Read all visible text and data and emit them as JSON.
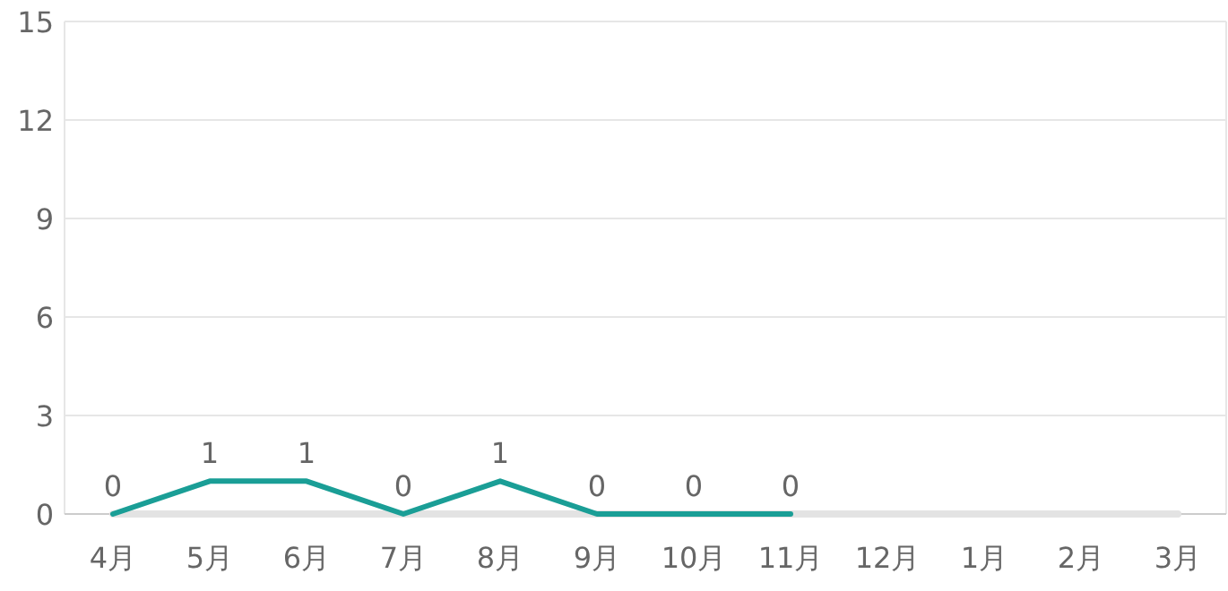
{
  "chart_data": {
    "type": "line",
    "categories": [
      "4月",
      "5月",
      "6月",
      "7月",
      "8月",
      "9月",
      "10月",
      "11月",
      "12月",
      "1月",
      "2月",
      "3月"
    ],
    "series": [
      {
        "color": "#e3e3e3",
        "values": [
          0,
          0,
          0,
          0,
          0,
          0,
          0,
          0,
          0,
          0,
          0,
          0
        ]
      },
      {
        "color": "#1a9e96",
        "values": [
          0,
          1,
          1,
          0,
          1,
          0,
          0,
          0,
          null,
          null,
          null,
          null
        ],
        "value_labels": [
          "0",
          "1",
          "1",
          "0",
          "1",
          "0",
          "0",
          "0",
          null,
          null,
          null,
          null
        ]
      }
    ],
    "ylim": [
      0,
      15
    ],
    "yticks": [
      0,
      3,
      6,
      9,
      12,
      15
    ],
    "grid": "y",
    "marker": "none",
    "line_style": "solid"
  }
}
